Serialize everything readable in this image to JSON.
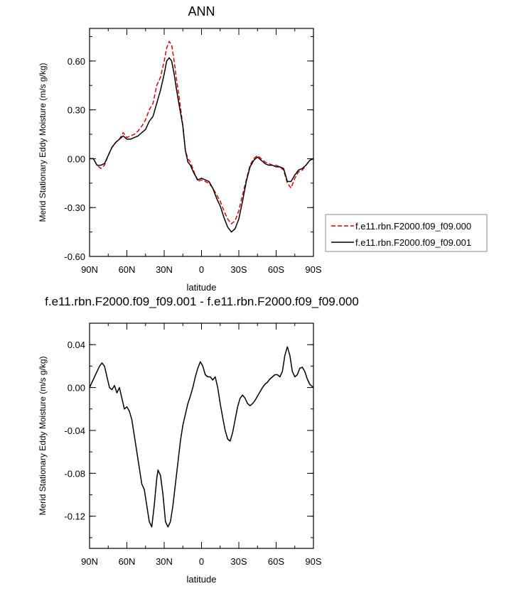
{
  "chart_data": [
    {
      "type": "line",
      "title": "ANN",
      "xlabel": "latitude",
      "ylabel": "Merid Stationary Eddy Moisture (m/s g/kg)",
      "xlim": [
        90,
        -90
      ],
      "ylim": [
        -0.6,
        0.8
      ],
      "x_ticks": [
        90,
        60,
        30,
        0,
        -30,
        -60,
        -90
      ],
      "x_tick_labels": [
        "90N",
        "60N",
        "30N",
        "0",
        "30S",
        "60S",
        "90S"
      ],
      "y_ticks": [
        -0.6,
        -0.3,
        0.0,
        0.3,
        0.6
      ],
      "y_tick_labels": [
        "-0.60",
        "-0.30",
        "0.00",
        "0.30",
        "0.60"
      ],
      "legend_position": "right",
      "series": [
        {
          "name": "f.e11.rbn.F2000.f09_f09.000",
          "color": "#e00000",
          "dash": "dashed",
          "points": [
            [
              90,
              0.0
            ],
            [
              87,
              0.0
            ],
            [
              84,
              -0.04
            ],
            [
              81,
              -0.06
            ],
            [
              78,
              -0.04
            ],
            [
              75,
              0.02
            ],
            [
              72,
              0.07
            ],
            [
              69,
              0.1
            ],
            [
              66,
              0.12
            ],
            [
              63,
              0.16
            ],
            [
              60,
              0.13
            ],
            [
              57,
              0.14
            ],
            [
              54,
              0.15
            ],
            [
              51,
              0.17
            ],
            [
              48,
              0.2
            ],
            [
              45,
              0.24
            ],
            [
              42,
              0.3
            ],
            [
              39,
              0.34
            ],
            [
              36,
              0.45
            ],
            [
              33,
              0.5
            ],
            [
              30,
              0.6
            ],
            [
              28,
              0.68
            ],
            [
              26,
              0.72
            ],
            [
              24,
              0.7
            ],
            [
              22,
              0.6
            ],
            [
              20,
              0.48
            ],
            [
              18,
              0.38
            ],
            [
              15,
              0.2
            ],
            [
              13,
              0.05
            ],
            [
              11,
              0.0
            ],
            [
              9,
              -0.02
            ],
            [
              6,
              -0.08
            ],
            [
              3,
              -0.14
            ],
            [
              0,
              -0.13
            ],
            [
              -3,
              -0.14
            ],
            [
              -6,
              -0.15
            ],
            [
              -9,
              -0.18
            ],
            [
              -12,
              -0.22
            ],
            [
              -15,
              -0.26
            ],
            [
              -18,
              -0.32
            ],
            [
              -21,
              -0.37
            ],
            [
              -24,
              -0.4
            ],
            [
              -27,
              -0.38
            ],
            [
              -30,
              -0.32
            ],
            [
              -33,
              -0.22
            ],
            [
              -36,
              -0.13
            ],
            [
              -39,
              -0.04
            ],
            [
              -42,
              0.0
            ],
            [
              -45,
              0.02
            ],
            [
              -48,
              0.0
            ],
            [
              -51,
              -0.02
            ],
            [
              -54,
              -0.03
            ],
            [
              -57,
              -0.04
            ],
            [
              -60,
              -0.04
            ],
            [
              -63,
              -0.05
            ],
            [
              -66,
              -0.07
            ],
            [
              -69,
              -0.15
            ],
            [
              -72,
              -0.18
            ],
            [
              -75,
              -0.12
            ],
            [
              -78,
              -0.08
            ],
            [
              -81,
              -0.07
            ],
            [
              -84,
              -0.04
            ],
            [
              -87,
              -0.01
            ],
            [
              -90,
              0.0
            ]
          ]
        },
        {
          "name": "f.e11.rbn.F2000.f09_f09.001",
          "color": "#000000",
          "dash": "solid",
          "points": [
            [
              90,
              0.0
            ],
            [
              87,
              0.0
            ],
            [
              84,
              -0.04
            ],
            [
              81,
              -0.04
            ],
            [
              78,
              -0.03
            ],
            [
              75,
              0.02
            ],
            [
              72,
              0.07
            ],
            [
              69,
              0.1
            ],
            [
              66,
              0.12
            ],
            [
              63,
              0.14
            ],
            [
              60,
              0.12
            ],
            [
              57,
              0.12
            ],
            [
              54,
              0.13
            ],
            [
              51,
              0.14
            ],
            [
              48,
              0.16
            ],
            [
              45,
              0.18
            ],
            [
              42,
              0.23
            ],
            [
              39,
              0.26
            ],
            [
              36,
              0.34
            ],
            [
              33,
              0.42
            ],
            [
              30,
              0.52
            ],
            [
              28,
              0.6
            ],
            [
              26,
              0.62
            ],
            [
              24,
              0.6
            ],
            [
              22,
              0.52
            ],
            [
              20,
              0.42
            ],
            [
              18,
              0.33
            ],
            [
              15,
              0.2
            ],
            [
              13,
              0.05
            ],
            [
              11,
              -0.02
            ],
            [
              9,
              -0.04
            ],
            [
              6,
              -0.09
            ],
            [
              3,
              -0.13
            ],
            [
              0,
              -0.12
            ],
            [
              -3,
              -0.13
            ],
            [
              -6,
              -0.14
            ],
            [
              -9,
              -0.18
            ],
            [
              -12,
              -0.24
            ],
            [
              -15,
              -0.29
            ],
            [
              -18,
              -0.36
            ],
            [
              -21,
              -0.42
            ],
            [
              -24,
              -0.45
            ],
            [
              -27,
              -0.43
            ],
            [
              -30,
              -0.37
            ],
            [
              -33,
              -0.26
            ],
            [
              -36,
              -0.14
            ],
            [
              -39,
              -0.05
            ],
            [
              -42,
              -0.01
            ],
            [
              -45,
              0.01
            ],
            [
              -48,
              -0.01
            ],
            [
              -51,
              -0.03
            ],
            [
              -54,
              -0.04
            ],
            [
              -57,
              -0.04
            ],
            [
              -60,
              -0.05
            ],
            [
              -63,
              -0.05
            ],
            [
              -66,
              -0.06
            ],
            [
              -69,
              -0.14
            ],
            [
              -72,
              -0.14
            ],
            [
              -75,
              -0.1
            ],
            [
              -78,
              -0.07
            ],
            [
              -81,
              -0.06
            ],
            [
              -84,
              -0.04
            ],
            [
              -87,
              -0.01
            ],
            [
              -90,
              0.0
            ]
          ]
        }
      ]
    },
    {
      "type": "line",
      "title": "f.e11.rbn.F2000.f09_f09.001 - f.e11.rbn.F2000.f09_f09.000",
      "xlabel": "latitude",
      "ylabel": "Merid Stationary Eddy Moisture (m/s g/kg)",
      "xlim": [
        90,
        -90
      ],
      "ylim": [
        -0.15,
        0.06
      ],
      "x_ticks": [
        90,
        60,
        30,
        0,
        -30,
        -60,
        -90
      ],
      "x_tick_labels": [
        "90N",
        "60N",
        "30N",
        "0",
        "30S",
        "60S",
        "90S"
      ],
      "y_ticks": [
        -0.12,
        -0.08,
        -0.04,
        0.0,
        0.04
      ],
      "y_tick_labels": [
        "-0.12",
        "-0.08",
        "-0.04",
        "0.00",
        "0.04"
      ],
      "series": [
        {
          "color": "#000000",
          "dash": "solid",
          "points": [
            [
              90,
              0.0
            ],
            [
              88,
              0.005
            ],
            [
              86,
              0.01
            ],
            [
              84,
              0.015
            ],
            [
              82,
              0.02
            ],
            [
              80,
              0.023
            ],
            [
              78,
              0.02
            ],
            [
              76,
              0.01
            ],
            [
              74,
              0.0
            ],
            [
              72,
              -0.002
            ],
            [
              70,
              0.002
            ],
            [
              68,
              -0.005
            ],
            [
              66,
              0.0
            ],
            [
              64,
              -0.01
            ],
            [
              62,
              -0.02
            ],
            [
              60,
              -0.018
            ],
            [
              58,
              -0.022
            ],
            [
              56,
              -0.03
            ],
            [
              54,
              -0.045
            ],
            [
              52,
              -0.06
            ],
            [
              50,
              -0.075
            ],
            [
              48,
              -0.09
            ],
            [
              46,
              -0.095
            ],
            [
              44,
              -0.11
            ],
            [
              42,
              -0.125
            ],
            [
              40,
              -0.13
            ],
            [
              38,
              -0.11
            ],
            [
              36,
              -0.085
            ],
            [
              35,
              -0.077
            ],
            [
              33,
              -0.082
            ],
            [
              31,
              -0.1
            ],
            [
              29,
              -0.125
            ],
            [
              27,
              -0.13
            ],
            [
              25,
              -0.125
            ],
            [
              23,
              -0.11
            ],
            [
              21,
              -0.09
            ],
            [
              19,
              -0.07
            ],
            [
              17,
              -0.05
            ],
            [
              15,
              -0.035
            ],
            [
              13,
              -0.025
            ],
            [
              11,
              -0.015
            ],
            [
              9,
              -0.008
            ],
            [
              7,
              0.0
            ],
            [
              5,
              0.01
            ],
            [
              3,
              0.018
            ],
            [
              1,
              0.024
            ],
            [
              -1,
              0.02
            ],
            [
              -3,
              0.012
            ],
            [
              -5,
              0.01
            ],
            [
              -7,
              0.01
            ],
            [
              -9,
              0.007
            ],
            [
              -11,
              0.01
            ],
            [
              -13,
              0.0
            ],
            [
              -15,
              -0.015
            ],
            [
              -17,
              -0.028
            ],
            [
              -19,
              -0.04
            ],
            [
              -21,
              -0.048
            ],
            [
              -23,
              -0.05
            ],
            [
              -25,
              -0.042
            ],
            [
              -27,
              -0.03
            ],
            [
              -29,
              -0.018
            ],
            [
              -31,
              -0.01
            ],
            [
              -33,
              -0.007
            ],
            [
              -35,
              -0.01
            ],
            [
              -37,
              -0.015
            ],
            [
              -39,
              -0.017
            ],
            [
              -41,
              -0.015
            ],
            [
              -43,
              -0.012
            ],
            [
              -45,
              -0.008
            ],
            [
              -47,
              -0.004
            ],
            [
              -49,
              0.0
            ],
            [
              -51,
              0.003
            ],
            [
              -53,
              0.005
            ],
            [
              -55,
              0.008
            ],
            [
              -57,
              0.01
            ],
            [
              -59,
              0.012
            ],
            [
              -61,
              0.012
            ],
            [
              -63,
              0.01
            ],
            [
              -65,
              0.015
            ],
            [
              -67,
              0.03
            ],
            [
              -69,
              0.038
            ],
            [
              -71,
              0.03
            ],
            [
              -73,
              0.015
            ],
            [
              -75,
              0.01
            ],
            [
              -77,
              0.012
            ],
            [
              -79,
              0.018
            ],
            [
              -81,
              0.019
            ],
            [
              -83,
              0.015
            ],
            [
              -85,
              0.008
            ],
            [
              -87,
              0.003
            ],
            [
              -90,
              0.0
            ]
          ]
        }
      ]
    }
  ]
}
